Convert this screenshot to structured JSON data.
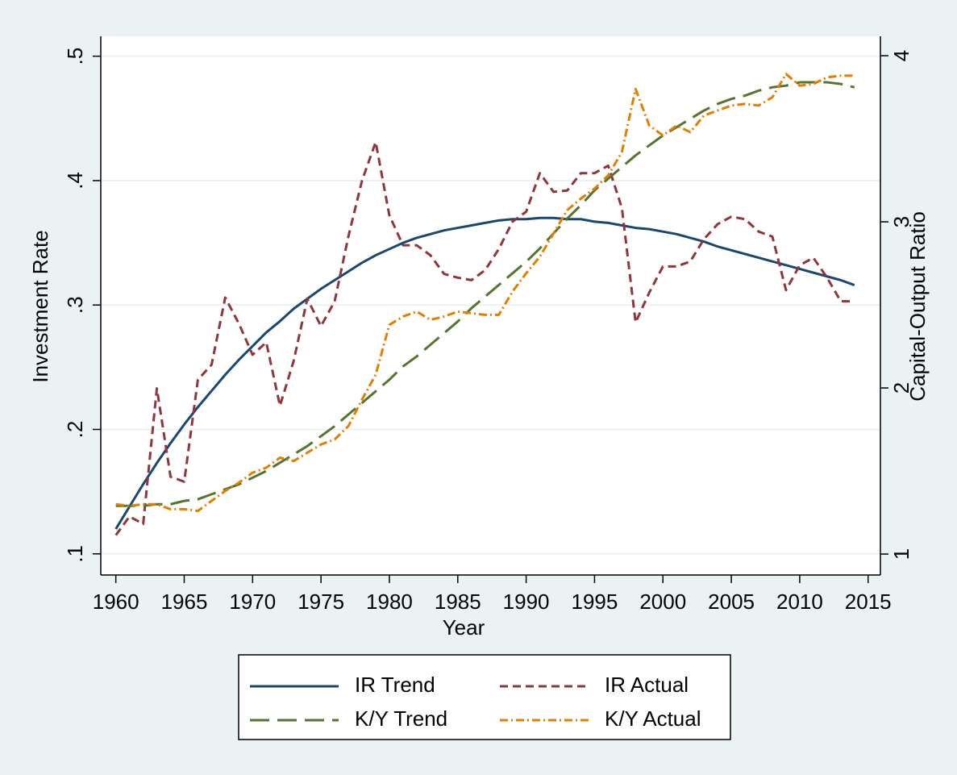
{
  "chart_data": {
    "type": "line",
    "xlabel": "Year",
    "ylabel": "Investment  Rate",
    "y2label": "Capital-Output  Ratio",
    "x": [
      1960,
      1961,
      1962,
      1963,
      1964,
      1965,
      1966,
      1967,
      1968,
      1969,
      1970,
      1971,
      1972,
      1973,
      1974,
      1975,
      1976,
      1977,
      1978,
      1979,
      1980,
      1981,
      1982,
      1983,
      1984,
      1985,
      1986,
      1987,
      1988,
      1989,
      1990,
      1991,
      1992,
      1993,
      1994,
      1995,
      1996,
      1997,
      1998,
      1999,
      2000,
      2001,
      2002,
      2003,
      2004,
      2005,
      2006,
      2007,
      2008,
      2009,
      2010,
      2011,
      2012,
      2013,
      2014
    ],
    "xlim": [
      1958.9,
      2015.9
    ],
    "xticks": [
      1960,
      1965,
      1970,
      1975,
      1980,
      1985,
      1990,
      1995,
      2000,
      2005,
      2010,
      2015
    ],
    "ylim": [
      0.083,
      0.516
    ],
    "yticks": [
      {
        "value": 0.1,
        "label": ".1"
      },
      {
        "value": 0.2,
        "label": ".2"
      },
      {
        "value": 0.3,
        "label": ".3"
      },
      {
        "value": 0.4,
        "label": ".4"
      },
      {
        "value": 0.5,
        "label": ".5"
      }
    ],
    "y2lim": [
      0.874,
      4.117
    ],
    "y2ticks": [
      1,
      2,
      3,
      4
    ],
    "grid": true,
    "legend": "bottom",
    "series": [
      {
        "name": "IR Trend",
        "color": "#1a476f",
        "dash": "none",
        "values": [
          0.12,
          0.138,
          0.156,
          0.173,
          0.189,
          0.204,
          0.218,
          0.231,
          0.244,
          0.256,
          0.267,
          0.278,
          0.287,
          0.297,
          0.305,
          0.313,
          0.32,
          0.327,
          0.334,
          0.34,
          0.345,
          0.35,
          0.354,
          0.357,
          0.36,
          0.362,
          0.364,
          0.366,
          0.368,
          0.369,
          0.369,
          0.37,
          0.37,
          0.369,
          0.369,
          0.367,
          0.366,
          0.364,
          0.362,
          0.361,
          0.359,
          0.357,
          0.354,
          0.351,
          0.347,
          0.344,
          0.341,
          0.338,
          0.335,
          0.332,
          0.329,
          0.326,
          0.323,
          0.32,
          0.316
        ]
      },
      {
        "name": "IR Actual",
        "color": "#90353b",
        "dash": "10,6",
        "values": [
          0.115,
          0.13,
          0.124,
          0.233,
          0.162,
          0.158,
          0.24,
          0.252,
          0.306,
          0.285,
          0.26,
          0.27,
          0.219,
          0.255,
          0.305,
          0.283,
          0.303,
          0.355,
          0.4,
          0.431,
          0.372,
          0.348,
          0.348,
          0.34,
          0.325,
          0.322,
          0.32,
          0.328,
          0.345,
          0.367,
          0.375,
          0.406,
          0.391,
          0.392,
          0.406,
          0.406,
          0.412,
          0.378,
          0.286,
          0.31,
          0.331,
          0.331,
          0.335,
          0.353,
          0.365,
          0.371,
          0.369,
          0.359,
          0.355,
          0.312,
          0.332,
          0.338,
          0.322,
          0.303,
          0.303
        ]
      },
      {
        "name": "K/Y Trend",
        "color": "#55752f",
        "dash": "24,10",
        "axis": "y2",
        "values": [
          1.29,
          1.29,
          1.29,
          1.3,
          1.3,
          1.32,
          1.33,
          1.36,
          1.39,
          1.42,
          1.46,
          1.5,
          1.55,
          1.6,
          1.65,
          1.71,
          1.77,
          1.84,
          1.91,
          1.98,
          2.05,
          2.13,
          2.19,
          2.26,
          2.33,
          2.4,
          2.48,
          2.55,
          2.62,
          2.69,
          2.76,
          2.84,
          2.93,
          3.02,
          3.1,
          3.19,
          3.26,
          3.33,
          3.4,
          3.46,
          3.52,
          3.57,
          3.62,
          3.67,
          3.71,
          3.74,
          3.76,
          3.79,
          3.81,
          3.82,
          3.84,
          3.84,
          3.84,
          3.83,
          3.81
        ]
      },
      {
        "name": "K/Y Actual",
        "color": "#e37e00",
        "dash": "10,4,2,4",
        "axis": "y2",
        "values": [
          1.3,
          1.29,
          1.3,
          1.3,
          1.27,
          1.27,
          1.26,
          1.32,
          1.38,
          1.43,
          1.49,
          1.52,
          1.58,
          1.56,
          1.61,
          1.66,
          1.69,
          1.77,
          1.93,
          2.08,
          2.38,
          2.43,
          2.46,
          2.41,
          2.43,
          2.46,
          2.45,
          2.44,
          2.44,
          2.58,
          2.69,
          2.79,
          2.93,
          3.07,
          3.14,
          3.2,
          3.28,
          3.42,
          3.8,
          3.58,
          3.52,
          3.58,
          3.54,
          3.64,
          3.67,
          3.7,
          3.71,
          3.7,
          3.75,
          3.89,
          3.82,
          3.83,
          3.87,
          3.88,
          3.88
        ]
      }
    ]
  }
}
